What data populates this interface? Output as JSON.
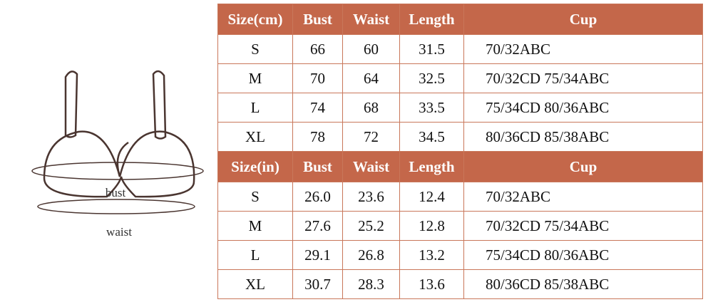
{
  "illustration": {
    "bust_label": "bust",
    "waist_label": "waist"
  },
  "tables": [
    {
      "header": [
        "Size(cm)",
        "Bust",
        "Waist",
        "Length",
        "Cup"
      ],
      "rows": [
        [
          "S",
          "66",
          "60",
          "31.5",
          "70/32ABC"
        ],
        [
          "M",
          "70",
          "64",
          "32.5",
          "70/32CD 75/34ABC"
        ],
        [
          "L",
          "74",
          "68",
          "33.5",
          "75/34CD 80/36ABC"
        ],
        [
          "XL",
          "78",
          "72",
          "34.5",
          "80/36CD 85/38ABC"
        ]
      ]
    },
    {
      "header": [
        "Size(in)",
        "Bust",
        "Waist",
        "Length",
        "Cup"
      ],
      "rows": [
        [
          "S",
          "26.0",
          "23.6",
          "12.4",
          "70/32ABC"
        ],
        [
          "M",
          "27.6",
          "25.2",
          "12.8",
          "70/32CD 75/34ABC"
        ],
        [
          "L",
          "29.1",
          "26.8",
          "13.2",
          "75/34CD 80/36ABC"
        ],
        [
          "XL",
          "30.7",
          "28.3",
          "13.6",
          "80/36CD 85/38ABC"
        ]
      ]
    }
  ]
}
